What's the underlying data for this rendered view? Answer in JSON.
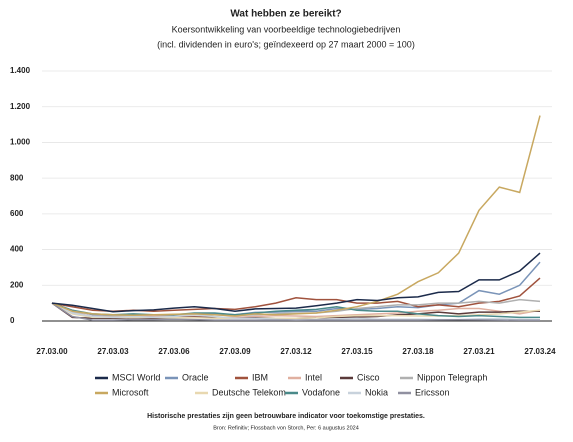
{
  "chart_data": {
    "type": "line",
    "title": "Wat hebben ze bereikt?",
    "subtitle": [
      "Koersontwikkeling van voorbeeldige technologiebedrijven",
      "(incl. dividenden in euro's; geïndexeerd op 27 maart 2000 = 100)"
    ],
    "footnote": [
      "Historische prestaties zijn geen betrouwbare indicator voor toekomstige prestaties.",
      "Bron: Refinitiv; Flossbach von Storch, Per: 6 augustus 2024"
    ],
    "categories": [
      "27.03.00",
      null,
      null,
      "27.03.03",
      null,
      null,
      "27.03.06",
      null,
      null,
      "27.03.09",
      null,
      null,
      "27.03.12",
      null,
      null,
      "27.03.15",
      null,
      null,
      "27.03.18",
      null,
      null,
      "27.03.21",
      null,
      null,
      "27.03.24"
    ],
    "ylim": [
      0,
      1400
    ],
    "yticks": [
      0,
      200,
      400,
      600,
      800,
      {
        "value": 1000,
        "label": "1.000"
      },
      {
        "value": 1200,
        "label": "1.200"
      },
      {
        "value": 1400,
        "label": "1.400"
      }
    ],
    "grid": true,
    "series": [
      {
        "name": "MSCI World",
        "color": "#1b2a4a",
        "values": [
          100,
          88,
          70,
          52,
          58,
          62,
          72,
          80,
          70,
          55,
          68,
          70,
          72,
          85,
          100,
          120,
          115,
          130,
          135,
          160,
          165,
          230,
          230,
          280,
          380
        ]
      },
      {
        "name": "Oracle",
        "color": "#7a94b8",
        "values": [
          100,
          60,
          35,
          30,
          30,
          28,
          32,
          38,
          40,
          35,
          48,
          50,
          55,
          55,
          70,
          65,
          70,
          80,
          75,
          90,
          100,
          170,
          150,
          200,
          330
        ]
      },
      {
        "name": "IBM",
        "color": "#a0523d",
        "values": [
          100,
          80,
          60,
          55,
          60,
          55,
          60,
          65,
          70,
          65,
          80,
          100,
          130,
          120,
          120,
          100,
          100,
          110,
          80,
          90,
          80,
          100,
          110,
          140,
          240
        ]
      },
      {
        "name": "Intel",
        "color": "#e0b0a0",
        "values": [
          100,
          50,
          25,
          25,
          30,
          30,
          25,
          25,
          20,
          20,
          25,
          30,
          28,
          25,
          30,
          35,
          40,
          45,
          55,
          60,
          70,
          70,
          55,
          40,
          60
        ]
      },
      {
        "name": "Cisco",
        "color": "#5a3a3a",
        "values": [
          100,
          20,
          15,
          15,
          18,
          15,
          18,
          22,
          18,
          15,
          18,
          15,
          15,
          18,
          20,
          22,
          25,
          35,
          40,
          50,
          40,
          50,
          50,
          55,
          55
        ]
      },
      {
        "name": "Nippon Telegraph",
        "color": "#b0b0b0",
        "values": [
          100,
          50,
          40,
          30,
          35,
          35,
          35,
          35,
          35,
          30,
          35,
          40,
          45,
          45,
          55,
          70,
          80,
          90,
          90,
          100,
          100,
          110,
          100,
          120,
          110
        ]
      },
      {
        "name": "Microsoft",
        "color": "#c8a860",
        "values": [
          100,
          55,
          40,
          35,
          32,
          35,
          38,
          40,
          35,
          28,
          40,
          35,
          40,
          45,
          60,
          80,
          110,
          150,
          220,
          270,
          380,
          620,
          750,
          720,
          1150
        ]
      },
      {
        "name": "Deutsche Telekom",
        "color": "#e8d8b0",
        "values": [
          100,
          40,
          20,
          20,
          20,
          20,
          18,
          18,
          15,
          15,
          15,
          15,
          15,
          18,
          25,
          30,
          30,
          30,
          28,
          28,
          30,
          35,
          40,
          50,
          60
        ]
      },
      {
        "name": "Vodafone",
        "color": "#4a8a8a",
        "values": [
          100,
          60,
          40,
          35,
          40,
          35,
          35,
          45,
          45,
          35,
          45,
          55,
          60,
          65,
          80,
          60,
          55,
          55,
          40,
          30,
          25,
          30,
          25,
          20,
          20
        ]
      },
      {
        "name": "Nokia",
        "color": "#c8d2dc",
        "values": [
          100,
          45,
          25,
          20,
          25,
          20,
          25,
          35,
          25,
          15,
          15,
          10,
          5,
          8,
          12,
          15,
          10,
          10,
          10,
          8,
          8,
          12,
          12,
          9,
          8
        ]
      },
      {
        "name": "Ericsson",
        "color": "#9090a0",
        "values": [
          100,
          25,
          5,
          5,
          8,
          8,
          10,
          8,
          5,
          5,
          5,
          5,
          5,
          5,
          5,
          5,
          5,
          5,
          5,
          6,
          7,
          6,
          5,
          4,
          4
        ]
      }
    ]
  }
}
